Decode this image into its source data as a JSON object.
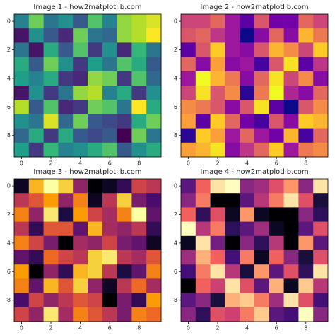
{
  "chart_data": [
    {
      "type": "heatmap",
      "title": "Image 1 - how2matplotlib.com",
      "cmap": "viridis",
      "xlim": [
        -0.5,
        9.5
      ],
      "ylim": [
        9.5,
        -0.5
      ],
      "xticks": [
        0,
        2,
        4,
        6,
        8
      ],
      "yticks": [
        0,
        2,
        4,
        6,
        8
      ],
      "values": [
        [
          0.45,
          0.75,
          0.4,
          0.5,
          0.3,
          0.7,
          0.45,
          0.8,
          0.85,
          0.9
        ],
        [
          0.1,
          0.5,
          0.3,
          0.15,
          0.75,
          0.4,
          0.35,
          0.8,
          0.85,
          0.95
        ],
        [
          0.4,
          0.1,
          0.6,
          0.3,
          0.7,
          0.2,
          0.5,
          0.15,
          0.65,
          0.4
        ],
        [
          0.6,
          0.3,
          0.75,
          0.5,
          0.2,
          0.55,
          0.4,
          0.7,
          0.6,
          0.3
        ],
        [
          0.55,
          0.45,
          0.6,
          0.2,
          0.15,
          0.8,
          0.75,
          0.2,
          0.7,
          0.35
        ],
        [
          0.1,
          0.5,
          0.2,
          0.4,
          0.8,
          0.85,
          0.45,
          0.6,
          0.2,
          0.5
        ],
        [
          0.85,
          0.3,
          0.7,
          0.15,
          0.2,
          0.75,
          0.7,
          0.4,
          0.95,
          0.6
        ],
        [
          0.5,
          0.4,
          0.9,
          0.35,
          0.75,
          0.3,
          0.25,
          0.2,
          0.6,
          0.75
        ],
        [
          0.35,
          0.6,
          0.2,
          0.6,
          0.3,
          0.25,
          0.3,
          0.05,
          0.75,
          0.4
        ],
        [
          0.55,
          0.2,
          0.65,
          0.45,
          0.5,
          0.6,
          0.7,
          0.3,
          0.5,
          0.6
        ]
      ]
    },
    {
      "type": "heatmap",
      "title": "Image 2 - how2matplotlib.com",
      "cmap": "plasma",
      "xlim": [
        -0.5,
        9.5
      ],
      "ylim": [
        9.5,
        -0.5
      ],
      "xticks": [
        0,
        2,
        4,
        6,
        8
      ],
      "yticks": [
        0,
        2,
        4,
        6,
        8
      ],
      "values": [
        [
          0.5,
          0.5,
          0.6,
          0.35,
          0.2,
          0.55,
          0.25,
          0.25,
          0.6,
          0.5
        ],
        [
          0.55,
          0.6,
          0.45,
          0.35,
          0.05,
          0.3,
          0.6,
          0.3,
          0.8,
          0.65
        ],
        [
          0.2,
          0.55,
          0.85,
          0.35,
          0.3,
          0.55,
          0.8,
          0.7,
          0.5,
          0.85
        ],
        [
          0.6,
          0.3,
          0.75,
          0.3,
          0.35,
          0.15,
          0.55,
          0.9,
          0.2,
          0.45
        ],
        [
          0.35,
          0.95,
          0.8,
          0.65,
          0.3,
          0.6,
          0.9,
          0.5,
          0.7,
          0.3
        ],
        [
          0.5,
          0.9,
          0.55,
          0.7,
          0.1,
          0.65,
          0.95,
          0.4,
          0.3,
          0.6
        ],
        [
          0.7,
          0.65,
          0.55,
          0.3,
          0.55,
          0.9,
          0.2,
          0.05,
          0.55,
          0.7
        ],
        [
          0.75,
          0.2,
          0.85,
          0.6,
          0.25,
          0.15,
          0.55,
          0.3,
          0.85,
          0.8
        ],
        [
          0.1,
          0.85,
          0.75,
          0.35,
          0.6,
          0.35,
          0.25,
          0.8,
          0.15,
          0.6
        ],
        [
          0.75,
          0.8,
          0.9,
          0.3,
          0.45,
          0.6,
          0.85,
          0.35,
          0.65,
          0.7
        ]
      ]
    },
    {
      "type": "heatmap",
      "title": "Image 3 - how2matplotlib.com",
      "cmap": "inferno",
      "xlim": [
        -0.5,
        9.5
      ],
      "ylim": [
        9.5,
        -0.5
      ],
      "xticks": [
        0,
        2,
        4,
        6,
        8
      ],
      "yticks": [
        0,
        2,
        4,
        6,
        8
      ],
      "values": [
        [
          0.1,
          0.8,
          0.95,
          0.85,
          0.4,
          0.05,
          0.1,
          0.2,
          0.55,
          0.5
        ],
        [
          0.5,
          0.6,
          0.75,
          0.4,
          0.7,
          0.1,
          0.5,
          0.85,
          0.35,
          0.25
        ],
        [
          0.7,
          0.4,
          0.9,
          0.15,
          0.75,
          0.55,
          0.45,
          0.7,
          0.95,
          0.3
        ],
        [
          0.5,
          0.2,
          0.6,
          0.6,
          0.3,
          0.8,
          0.45,
          0.4,
          0.5,
          0.2
        ],
        [
          0.7,
          0.55,
          0.35,
          0.05,
          0.45,
          0.4,
          0.55,
          0.35,
          0.3,
          0.1
        ],
        [
          0.3,
          0.2,
          0.65,
          0.55,
          0.5,
          0.85,
          0.9,
          0.5,
          0.45,
          0.6
        ],
        [
          0.75,
          0.05,
          0.4,
          0.2,
          0.8,
          0.85,
          0.5,
          0.15,
          0.3,
          0.7
        ],
        [
          0.7,
          0.3,
          0.8,
          0.6,
          0.85,
          0.4,
          0.1,
          0.5,
          0.65,
          0.45
        ],
        [
          0.25,
          0.55,
          0.4,
          0.5,
          0.6,
          0.55,
          0.05,
          0.35,
          0.2,
          0.75
        ],
        [
          0.55,
          0.4,
          0.9,
          0.45,
          0.7,
          0.6,
          0.5,
          0.35,
          0.7,
          0.65
        ]
      ]
    },
    {
      "type": "heatmap",
      "title": "Image 4 - how2matplotlib.com",
      "cmap": "magma",
      "xlim": [
        -0.5,
        9.5
      ],
      "ylim": [
        9.5,
        -0.5
      ],
      "xticks": [
        0,
        2,
        4,
        6,
        8
      ],
      "yticks": [
        0,
        2,
        4,
        6,
        8
      ],
      "values": [
        [
          0.3,
          0.65,
          0.9,
          0.95,
          0.4,
          0.45,
          0.6,
          0.75,
          0.4,
          0.9
        ],
        [
          0.4,
          0.7,
          0.05,
          0.05,
          0.3,
          0.5,
          0.7,
          0.9,
          0.6,
          0.15
        ],
        [
          0.65,
          0.2,
          0.6,
          0.1,
          0.75,
          0.1,
          0.05,
          0.05,
          0.4,
          0.2
        ],
        [
          0.95,
          0.5,
          0.7,
          0.2,
          0.3,
          0.45,
          0.1,
          0.05,
          0.3,
          0.6
        ],
        [
          0.1,
          0.9,
          0.35,
          0.05,
          0.4,
          0.2,
          0.5,
          0.05,
          0.75,
          0.3
        ],
        [
          0.45,
          0.8,
          0.65,
          0.25,
          0.7,
          0.1,
          0.65,
          0.4,
          0.15,
          0.6
        ],
        [
          0.25,
          0.7,
          0.9,
          0.5,
          0.15,
          0.75,
          0.3,
          0.6,
          0.2,
          0.9
        ],
        [
          0.05,
          0.65,
          0.55,
          0.9,
          0.6,
          0.3,
          0.8,
          0.1,
          0.85,
          0.5
        ],
        [
          0.3,
          0.4,
          0.15,
          0.8,
          0.85,
          0.7,
          0.45,
          0.9,
          0.6,
          0.25
        ],
        [
          0.4,
          0.2,
          0.6,
          0.55,
          0.7,
          0.85,
          0.3,
          0.25,
          0.95,
          0.4
        ]
      ]
    }
  ]
}
